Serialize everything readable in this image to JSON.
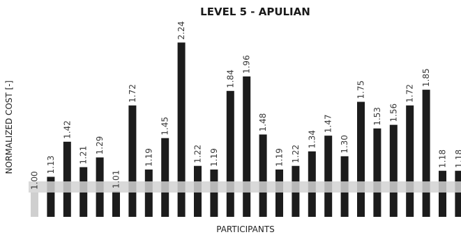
{
  "chart_data": {
    "type": "bar",
    "title": "LEVEL 5 - APULIAN",
    "xlabel": "PARTICIPANTS",
    "ylabel": "NORMALIZED COST [-]",
    "values": [
      1.0,
      1.13,
      1.42,
      1.21,
      1.29,
      1.01,
      1.72,
      1.19,
      1.45,
      2.24,
      1.22,
      1.19,
      1.84,
      1.96,
      1.48,
      1.19,
      1.22,
      1.34,
      1.47,
      1.3,
      1.75,
      1.53,
      1.56,
      1.72,
      1.85,
      1.18,
      1.18
    ],
    "value_labels": [
      "1.00",
      "1.13",
      "1.42",
      "1.21",
      "1.29",
      "1.01",
      "1.72",
      "1.19",
      "1.45",
      "2.24",
      "1.22",
      "1.19",
      "1.84",
      "1.96",
      "1.48",
      "1.19",
      "1.22",
      "1.34",
      "1.47",
      "1.30",
      "1.75",
      "1.53",
      "1.56",
      "1.72",
      "1.85",
      "1.18",
      "1.18"
    ],
    "reference_value": 1.0,
    "colors": {
      "bar": "#1c1c1c",
      "reference_bar": "#cfcfcf",
      "reference_band": "#d2d2d2",
      "value_label": "#3a3a3a"
    },
    "grid": false,
    "legend": "none"
  }
}
